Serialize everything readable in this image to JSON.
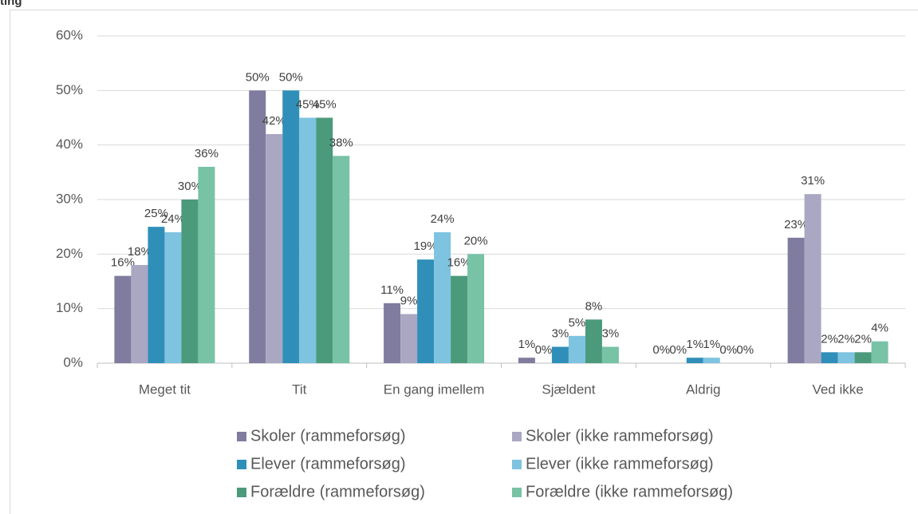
{
  "chart_data": {
    "type": "bar",
    "title": "ting",
    "categories": [
      "Meget tit",
      "Tit",
      "En gang imellem",
      "Sjældent",
      "Aldrig",
      "Ved ikke"
    ],
    "series": [
      {
        "name": "Skoler (rammeforsøg)",
        "color": "#807c9f",
        "values": [
          16,
          50,
          11,
          1,
          0,
          23
        ],
        "value_labels": [
          "16%",
          "50%",
          "11%",
          "1%",
          "0%",
          "23%"
        ]
      },
      {
        "name": "Skoler (ikke rammeforsøg)",
        "color": "#aaa7c3",
        "values": [
          18,
          42,
          9,
          0,
          0,
          31
        ],
        "value_labels": [
          "18%",
          "42%",
          "9%",
          "0%",
          "0%",
          "31%"
        ]
      },
      {
        "name": "Elever (rammeforsøg)",
        "color": "#2f8fb9",
        "values": [
          25,
          50,
          19,
          3,
          1,
          2
        ],
        "value_labels": [
          "25%",
          "50%",
          "19%",
          "3%",
          "1%",
          "2%"
        ]
      },
      {
        "name": "Elever (ikke rammeforsøg)",
        "color": "#7ec3e0",
        "values": [
          24,
          45,
          24,
          5,
          1,
          2
        ],
        "value_labels": [
          "24%",
          "45%",
          "24%",
          "5%",
          "1%",
          "2%"
        ]
      },
      {
        "name": "Forældre (rammeforsøg)",
        "color": "#4b9a7b",
        "values": [
          30,
          45,
          16,
          8,
          0,
          2
        ],
        "value_labels": [
          "30%",
          "45%",
          "16%",
          "8%",
          "0%",
          "2%"
        ]
      },
      {
        "name": "Forældre (ikke rammeforsøg)",
        "color": "#78c2a6",
        "values": [
          36,
          38,
          20,
          3,
          0,
          4
        ],
        "value_labels": [
          "36%",
          "38%",
          "20%",
          "3%",
          "0%",
          "4%"
        ]
      }
    ],
    "ylim": [
      0,
      60
    ],
    "yticks": [
      {
        "value": 0,
        "label": "0%"
      },
      {
        "value": 10,
        "label": "10%"
      },
      {
        "value": 20,
        "label": "20%"
      },
      {
        "value": 30,
        "label": "30%"
      },
      {
        "value": 40,
        "label": "40%"
      },
      {
        "value": 50,
        "label": "50%"
      },
      {
        "value": 60,
        "label": "60%"
      }
    ],
    "grid": true,
    "legend": "bottom"
  }
}
